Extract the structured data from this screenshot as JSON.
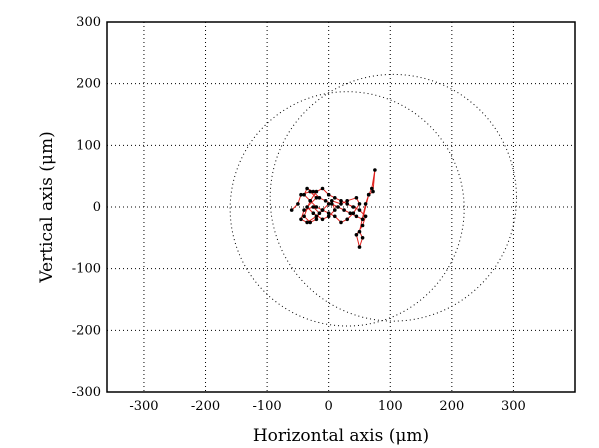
{
  "chart_data": {
    "type": "scatter",
    "xlabel": "Horizontal axis (μm)",
    "ylabel": "Vertical axis (μm)",
    "xlim": [
      -360,
      400
    ],
    "ylim": [
      -300,
      300
    ],
    "grid": true,
    "x_ticks": [
      -300,
      -200,
      -100,
      0,
      100,
      200,
      300
    ],
    "y_ticks": [
      -300,
      -200,
      -100,
      0,
      100,
      200,
      300
    ],
    "circles": [
      {
        "cx": 30,
        "cy": -3,
        "r": 190
      },
      {
        "cx": 105,
        "cy": 15,
        "r": 200
      }
    ],
    "trajectory": {
      "color": "#e0201c",
      "marker_color": "#000000",
      "x": [
        -60,
        -50,
        -45,
        -30,
        -20,
        -35,
        -25,
        -10,
        0,
        10,
        5,
        20,
        30,
        45,
        50,
        40,
        30,
        20,
        10,
        0,
        -10,
        -20,
        -30,
        -40,
        -35,
        -25,
        -15,
        -5,
        5,
        15,
        25,
        35,
        45,
        55,
        65,
        70,
        75,
        72,
        65,
        60,
        50,
        55,
        50,
        45,
        55,
        60,
        50,
        40,
        30,
        20,
        10,
        0,
        -10,
        -20,
        -30,
        -40,
        -30,
        -20,
        -15,
        -25,
        -40,
        -45,
        -35,
        -20,
        -10,
        0
      ],
      "y": [
        -5,
        5,
        20,
        25,
        15,
        0,
        -10,
        -20,
        -15,
        -5,
        10,
        5,
        10,
        15,
        5,
        -10,
        -20,
        -25,
        -15,
        -10,
        -5,
        0,
        10,
        20,
        30,
        25,
        15,
        10,
        5,
        0,
        -5,
        -10,
        -15,
        -20,
        20,
        30,
        60,
        25,
        20,
        5,
        -40,
        -50,
        -65,
        -45,
        -30,
        -15,
        -5,
        0,
        5,
        10,
        15,
        20,
        30,
        25,
        10,
        -15,
        -25,
        -20,
        -10,
        0,
        -5,
        -20,
        -25,
        -15,
        -5,
        5
      ]
    }
  }
}
